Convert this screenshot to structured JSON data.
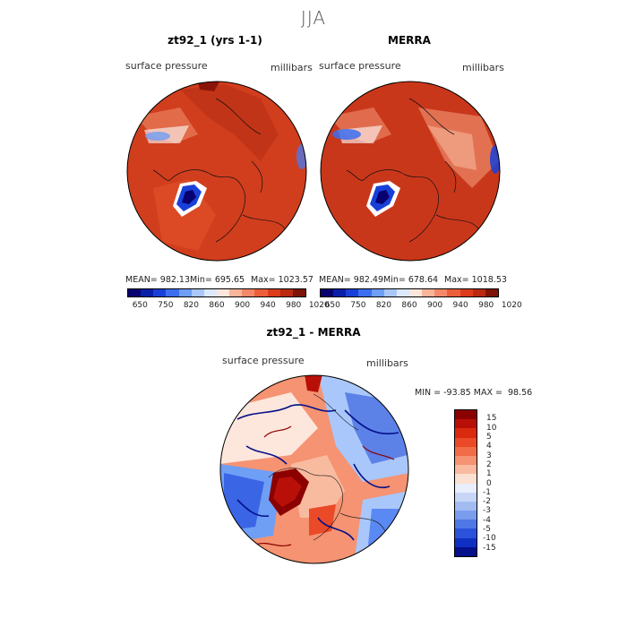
{
  "season": "JJA",
  "panels": [
    {
      "title": "zt92_1 (yrs 1-1)",
      "field": "surface pressure",
      "units": "millibars",
      "mean_label": "MEAN= 982.13",
      "min_label": "Min= 695.65",
      "max_label": "Max= 1023.57"
    },
    {
      "title": "MERRA",
      "field": "surface pressure",
      "units": "millibars",
      "mean_label": "MEAN= 982.49",
      "min_label": "Min= 678.64",
      "max_label": "Max= 1018.53"
    }
  ],
  "abs_colorbar": {
    "colors": [
      "#08006e",
      "#0a1fa8",
      "#1840d8",
      "#3b6ff0",
      "#6f9ef5",
      "#a9c7fa",
      "#dce8fd",
      "#fde6dc",
      "#f7b59a",
      "#f3896a",
      "#ec5f3c",
      "#dd3c1c",
      "#b92a10",
      "#7d1407"
    ],
    "tick_labels": [
      "650",
      "750",
      "820",
      "860",
      "900",
      "940",
      "980",
      "1020"
    ]
  },
  "diff": {
    "title": "zt92_1 - MERRA",
    "field": "surface pressure",
    "units": "millibars",
    "min_max_label": "MIN = -93.85 MAX =  98.56",
    "colors": [
      "#8b0000",
      "#b81008",
      "#d9290f",
      "#ea4a28",
      "#f06d48",
      "#f59372",
      "#f9bba0",
      "#fbe1d2",
      "#e8eefb",
      "#c7d6f7",
      "#a2bcf2",
      "#7a9ced",
      "#4f78e6",
      "#2a52da",
      "#1030c4",
      "#05108a"
    ],
    "tick_labels": [
      "15",
      "10",
      "5",
      "4",
      "3",
      "2",
      "1",
      "0",
      "-1",
      "-2",
      "-3",
      "-4",
      "-5",
      "-10",
      "-15"
    ]
  }
}
